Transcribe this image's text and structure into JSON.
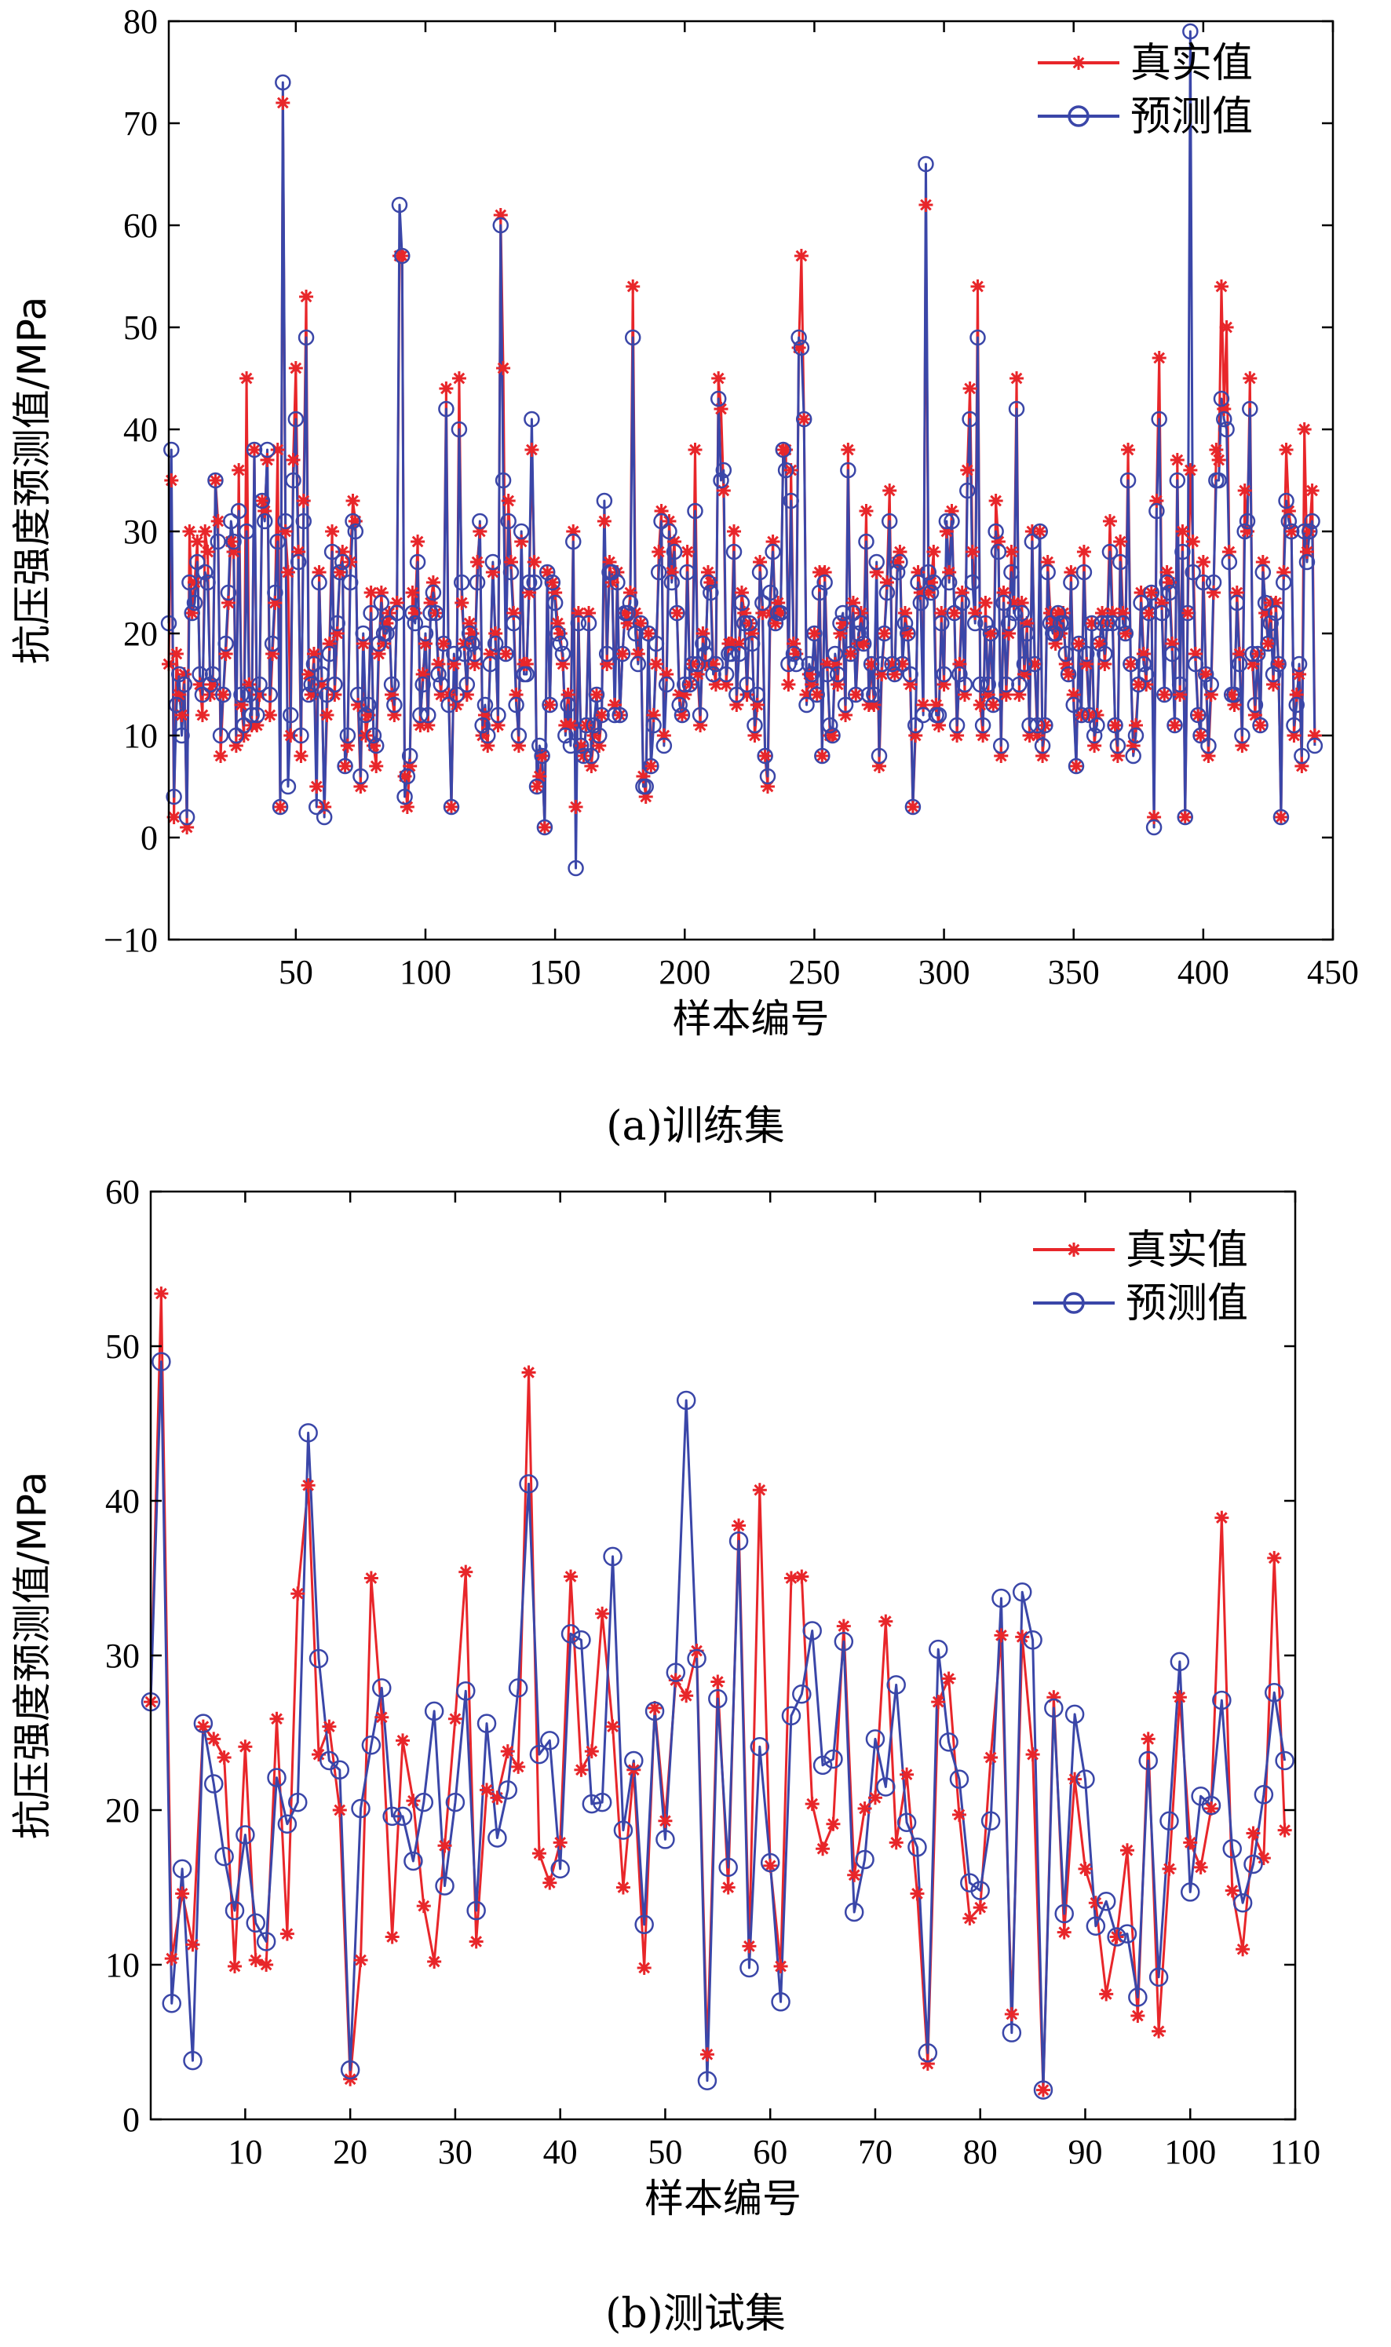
{
  "chart_data": [
    {
      "type": "line",
      "caption": "(a)训练集",
      "xlabel": "样本编号",
      "ylabel": "抗压强度预测值/MPa",
      "xlim": [
        1,
        450
      ],
      "ylim": [
        -10,
        80
      ],
      "xticks": [
        50,
        100,
        150,
        200,
        250,
        300,
        350,
        400,
        450
      ],
      "yticks": [
        -10,
        0,
        10,
        20,
        30,
        40,
        50,
        60,
        70,
        80
      ],
      "legend": [
        "真实值",
        "预测值"
      ],
      "legend_position": "top-right",
      "series": [
        {
          "name": "真实值",
          "color": "#e8262a",
          "marker": "asterisk",
          "values": [
            17,
            35,
            2,
            18,
            14,
            12,
            16,
            1,
            30,
            22,
            25,
            29,
            15,
            12,
            30,
            28,
            14,
            15,
            35,
            31,
            8,
            14,
            18,
            23,
            29,
            28,
            9,
            36,
            13,
            10,
            45,
            15,
            11,
            38,
            11,
            14,
            33,
            32,
            37,
            12,
            18,
            23,
            38,
            3,
            72,
            30,
            26,
            10,
            37,
            46,
            28,
            8,
            33,
            53,
            16,
            14,
            18,
            5,
            26,
            15,
            3,
            12,
            19,
            30,
            14,
            20,
            26,
            28,
            7,
            9,
            27,
            33,
            31,
            13,
            5,
            19,
            10,
            12,
            24,
            9,
            7,
            18,
            24,
            19,
            21,
            22,
            14,
            12,
            23,
            57,
            57,
            6,
            3,
            7,
            24,
            22,
            29,
            11,
            16,
            19,
            11,
            23,
            25,
            22,
            17,
            14,
            19,
            44,
            14,
            3,
            17,
            13,
            45,
            23,
            19,
            14,
            21,
            20,
            17,
            27,
            30,
            10,
            12,
            9,
            18,
            26,
            20,
            11,
            61,
            46,
            18,
            33,
            27,
            22,
            14,
            9,
            29,
            17,
            17,
            24,
            38,
            27,
            5,
            6,
            8,
            1,
            26,
            13,
            25,
            24,
            21,
            20,
            17,
            11,
            14,
            11,
            30,
            3,
            22,
            9,
            8,
            11,
            22,
            7,
            10,
            14,
            9,
            12,
            31,
            17,
            27,
            25,
            13,
            26,
            12,
            18,
            22,
            21,
            24,
            54,
            22,
            18,
            21,
            6,
            4,
            20,
            7,
            12,
            17,
            28,
            32,
            10,
            16,
            31,
            26,
            29,
            22,
            14,
            12,
            14,
            28,
            15,
            17,
            38,
            16,
            11,
            20,
            17,
            26,
            25,
            17,
            15,
            45,
            42,
            34,
            15,
            19,
            19,
            30,
            13,
            19,
            24,
            22,
            14,
            21,
            20,
            10,
            13,
            27,
            22,
            8,
            5,
            22,
            29,
            21,
            23,
            22,
            38,
            38,
            15,
            36,
            19,
            18,
            48,
            57,
            41,
            14,
            16,
            15,
            20,
            14,
            26,
            8,
            26,
            17,
            10,
            10,
            17,
            15,
            20,
            21,
            12,
            38,
            18,
            23,
            14,
            19,
            22,
            19,
            32,
            13,
            17,
            13,
            26,
            7,
            16,
            20,
            25,
            34,
            17,
            16,
            27,
            28,
            17,
            22,
            20,
            15,
            3,
            10,
            26,
            24,
            13,
            62,
            24,
            25,
            28,
            13,
            11,
            22,
            15,
            30,
            26,
            32,
            22,
            10,
            17,
            24,
            14,
            36,
            44,
            28,
            22,
            54,
            13,
            10,
            23,
            14,
            20,
            13,
            33,
            29,
            8,
            24,
            14,
            20,
            28,
            23,
            45,
            14,
            23,
            16,
            21,
            10,
            30,
            17,
            10,
            30,
            8,
            11,
            27,
            22,
            21,
            19,
            22,
            20,
            22,
            17,
            16,
            26,
            14,
            7,
            19,
            12,
            28,
            17,
            12,
            21,
            9,
            12,
            19,
            22,
            17,
            21,
            31,
            22,
            11,
            8,
            29,
            22,
            20,
            38,
            17,
            9,
            11,
            15,
            24,
            18,
            15,
            22,
            24,
            2,
            33,
            47,
            23,
            14,
            26,
            25,
            19,
            11,
            37,
            14,
            30,
            2,
            22,
            36,
            29,
            18,
            12,
            10,
            27,
            16,
            8,
            14,
            24,
            38,
            37,
            54,
            42,
            50,
            28,
            14,
            13,
            24,
            18,
            9,
            34,
            30,
            45,
            17,
            12,
            18,
            11,
            27,
            22,
            19,
            23,
            15,
            23,
            17,
            2,
            26,
            38,
            32,
            30,
            10,
            14,
            16,
            7,
            40,
            28,
            30,
            34,
            10
          ]
        },
        {
          "name": "预测值",
          "color": "#3a46a8",
          "marker": "circle",
          "values": [
            21,
            38,
            4,
            13,
            16,
            10,
            15,
            2,
            25,
            22,
            23,
            27,
            16,
            14,
            26,
            25,
            15,
            16,
            35,
            29,
            10,
            14,
            19,
            24,
            31,
            29,
            10,
            32,
            14,
            11,
            30,
            14,
            12,
            38,
            12,
            15,
            33,
            31,
            38,
            14,
            19,
            24,
            29,
            3,
            74,
            31,
            5,
            12,
            35,
            41,
            27,
            10,
            31,
            49,
            14,
            15,
            17,
            3,
            25,
            16,
            2,
            14,
            18,
            28,
            15,
            21,
            26,
            27,
            7,
            10,
            25,
            31,
            30,
            14,
            6,
            20,
            12,
            13,
            22,
            10,
            9,
            19,
            23,
            20,
            20,
            21,
            15,
            13,
            22,
            62,
            57,
            4,
            6,
            8,
            22,
            21,
            27,
            12,
            15,
            20,
            12,
            22,
            24,
            22,
            16,
            15,
            19,
            42,
            13,
            3,
            18,
            14,
            40,
            25,
            18,
            15,
            20,
            19,
            18,
            25,
            31,
            11,
            13,
            10,
            17,
            27,
            19,
            12,
            60,
            35,
            18,
            31,
            26,
            21,
            13,
            10,
            30,
            16,
            16,
            25,
            41,
            25,
            5,
            9,
            8,
            1,
            26,
            13,
            25,
            23,
            20,
            19,
            18,
            10,
            13,
            9,
            29,
            -3,
            21,
            9,
            8,
            11,
            21,
            8,
            11,
            14,
            10,
            12,
            33,
            18,
            26,
            26,
            12,
            25,
            12,
            18,
            22,
            22,
            23,
            49,
            20,
            17,
            21,
            5,
            5,
            20,
            7,
            11,
            19,
            26,
            31,
            9,
            15,
            30,
            25,
            28,
            22,
            13,
            12,
            15,
            26,
            15,
            17,
            32,
            17,
            12,
            19,
            18,
            25,
            24,
            16,
            17,
            43,
            35,
            36,
            16,
            18,
            18,
            28,
            14,
            18,
            23,
            21,
            15,
            21,
            19,
            11,
            14,
            26,
            23,
            8,
            6,
            24,
            28,
            21,
            22,
            22,
            38,
            36,
            17,
            33,
            18,
            17,
            49,
            48,
            41,
            13,
            17,
            16,
            20,
            14,
            24,
            8,
            25,
            16,
            11,
            10,
            18,
            16,
            21,
            22,
            13,
            36,
            18,
            22,
            14,
            20,
            21,
            19,
            29,
            14,
            17,
            14,
            27,
            8,
            17,
            20,
            24,
            31,
            17,
            16,
            26,
            27,
            17,
            21,
            20,
            16,
            3,
            11,
            25,
            23,
            12,
            66,
            26,
            24,
            25,
            12,
            12,
            21,
            16,
            31,
            25,
            31,
            22,
            11,
            16,
            23,
            15,
            34,
            41,
            25,
            21,
            49,
            15,
            11,
            21,
            15,
            20,
            13,
            30,
            28,
            9,
            23,
            15,
            21,
            26,
            22,
            42,
            15,
            22,
            17,
            20,
            11,
            29,
            17,
            11,
            30,
            9,
            11,
            26,
            21,
            20,
            20,
            22,
            21,
            21,
            18,
            16,
            25,
            13,
            7,
            19,
            12,
            26,
            18,
            12,
            21,
            10,
            11,
            19,
            21,
            18,
            21,
            28,
            21,
            11,
            9,
            27,
            21,
            20,
            35,
            17,
            8,
            10,
            15,
            23,
            17,
            16,
            22,
            24,
            1,
            32,
            41,
            22,
            14,
            25,
            24,
            18,
            11,
            35,
            15,
            28,
            2,
            22,
            79,
            26,
            17,
            12,
            10,
            25,
            16,
            9,
            15,
            25,
            35,
            35,
            43,
            41,
            40,
            27,
            14,
            14,
            23,
            17,
            10,
            30,
            31,
            42,
            18,
            13,
            18,
            11,
            26,
            23,
            19,
            21,
            16,
            22,
            17,
            2,
            25,
            33,
            31,
            30,
            11,
            13,
            17,
            8,
            30,
            27,
            30,
            31,
            9
          ]
        }
      ]
    },
    {
      "type": "line",
      "caption": "(b)测试集",
      "xlabel": "样本编号",
      "ylabel": "抗压强度预测值/MPa",
      "xlim": [
        1,
        110
      ],
      "ylim": [
        0,
        60
      ],
      "xticks": [
        10,
        20,
        30,
        40,
        50,
        60,
        70,
        80,
        90,
        100,
        110
      ],
      "yticks": [
        0,
        10,
        20,
        30,
        40,
        50,
        60
      ],
      "legend": [
        "真实值",
        "预测值"
      ],
      "legend_position": "top-right",
      "series": [
        {
          "name": "真实值",
          "color": "#e8262a",
          "marker": "asterisk",
          "values": [
            27.0,
            53.4,
            10.4,
            14.6,
            11.3,
            25.4,
            24.6,
            23.4,
            9.9,
            24.1,
            10.3,
            10.0,
            25.9,
            12.0,
            34.0,
            41.0,
            23.6,
            25.4,
            20.0,
            2.6,
            10.3,
            35.0,
            26.0,
            11.8,
            24.5,
            20.6,
            13.8,
            10.2,
            17.7,
            25.9,
            35.4,
            11.5,
            21.3,
            20.8,
            23.8,
            22.8,
            48.3,
            17.2,
            15.3,
            17.9,
            35.1,
            22.6,
            23.8,
            32.7,
            25.4,
            15.0,
            22.6,
            9.8,
            26.6,
            19.3,
            28.4,
            27.4,
            30.3,
            4.2,
            28.3,
            15.0,
            38.4,
            11.2,
            40.7,
            16.4,
            9.9,
            35.0,
            35.1,
            20.4,
            17.5,
            19.1,
            31.9,
            15.8,
            20.1,
            20.8,
            32.2,
            17.9,
            22.3,
            14.6,
            3.6,
            27.0,
            28.5,
            19.7,
            13.0,
            13.7,
            23.4,
            31.3,
            6.8,
            31.2,
            23.6,
            1.9,
            27.3,
            12.1,
            22.0,
            16.2,
            14.0,
            8.1,
            11.8,
            17.4,
            6.7,
            24.6,
            5.7,
            16.2,
            27.3,
            17.9,
            16.3,
            20.1,
            38.9,
            14.8,
            11.0,
            18.5,
            16.9,
            36.3,
            18.7
          ]
        },
        {
          "name": "预测值",
          "color": "#3a46a8",
          "marker": "circle",
          "values": [
            27.0,
            49.0,
            7.5,
            16.2,
            3.8,
            25.6,
            21.7,
            17.0,
            13.5,
            18.4,
            12.7,
            11.5,
            22.1,
            19.1,
            20.5,
            44.4,
            29.8,
            23.2,
            22.6,
            3.2,
            20.1,
            24.2,
            27.9,
            19.6,
            19.6,
            16.7,
            20.5,
            26.4,
            15.1,
            20.5,
            27.7,
            13.5,
            25.6,
            18.2,
            21.3,
            27.9,
            41.1,
            23.6,
            24.5,
            16.2,
            31.4,
            31.0,
            20.4,
            20.5,
            36.4,
            18.7,
            23.2,
            12.6,
            26.4,
            18.1,
            28.9,
            46.5,
            29.8,
            2.5,
            27.2,
            16.3,
            37.4,
            9.8,
            24.1,
            16.6,
            7.6,
            26.1,
            27.5,
            31.6,
            22.9,
            23.3,
            30.9,
            13.4,
            16.8,
            24.6,
            21.5,
            28.1,
            19.2,
            17.6,
            4.3,
            30.4,
            24.4,
            22.0,
            15.3,
            14.8,
            19.3,
            33.7,
            5.6,
            34.1,
            31.0,
            1.9,
            26.6,
            13.3,
            26.2,
            22.0,
            12.5,
            14.1,
            11.8,
            12.0,
            7.9,
            23.2,
            9.2,
            19.3,
            29.6,
            14.7,
            20.9,
            20.3,
            27.1,
            17.5,
            14.0,
            16.5,
            21.0,
            27.6,
            23.2
          ]
        }
      ]
    }
  ]
}
